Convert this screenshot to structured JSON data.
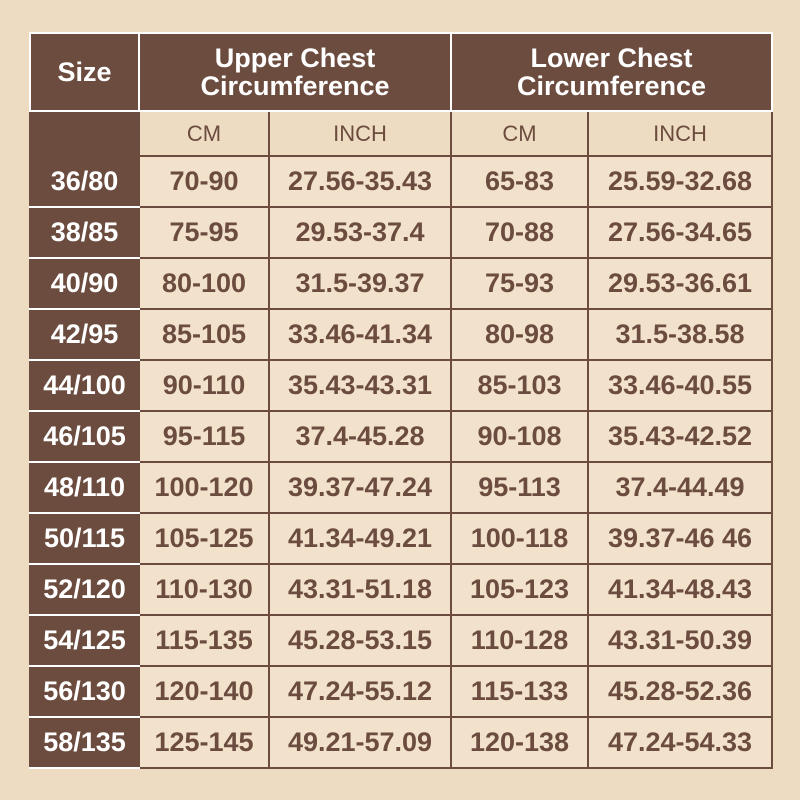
{
  "header": {
    "size": "Size",
    "upper": "Upper Chest Circumference",
    "lower": "Lower Chest Circumference",
    "cm": "CM",
    "inch": "INCH"
  },
  "colors": {
    "brown": "#6b4c3f",
    "background": "#eedcc2"
  },
  "rows": [
    [
      "36/80",
      "70-90",
      "27.56-35.43",
      "65-83",
      "25.59-32.68"
    ],
    [
      "38/85",
      "75-95",
      "29.53-37.4",
      "70-88",
      "27.56-34.65"
    ],
    [
      "40/90",
      "80-100",
      "31.5-39.37",
      "75-93",
      "29.53-36.61"
    ],
    [
      "42/95",
      "85-105",
      "33.46-41.34",
      "80-98",
      "31.5-38.58"
    ],
    [
      "44/100",
      "90-110",
      "35.43-43.31",
      "85-103",
      "33.46-40.55"
    ],
    [
      "46/105",
      "95-115",
      "37.4-45.28",
      "90-108",
      "35.43-42.52"
    ],
    [
      "48/110",
      "100-120",
      "39.37-47.24",
      "95-113",
      "37.4-44.49"
    ],
    [
      "50/115",
      "105-125",
      "41.34-49.21",
      "100-118",
      "39.37-46 46"
    ],
    [
      "52/120",
      "110-130",
      "43.31-51.18",
      "105-123",
      "41.34-48.43"
    ],
    [
      "54/125",
      "115-135",
      "45.28-53.15",
      "110-128",
      "43.31-50.39"
    ],
    [
      "56/130",
      "120-140",
      "47.24-55.12",
      "115-133",
      "45.28-52.36"
    ],
    [
      "58/135",
      "125-145",
      "49.21-57.09",
      "120-138",
      "47.24-54.33"
    ]
  ]
}
